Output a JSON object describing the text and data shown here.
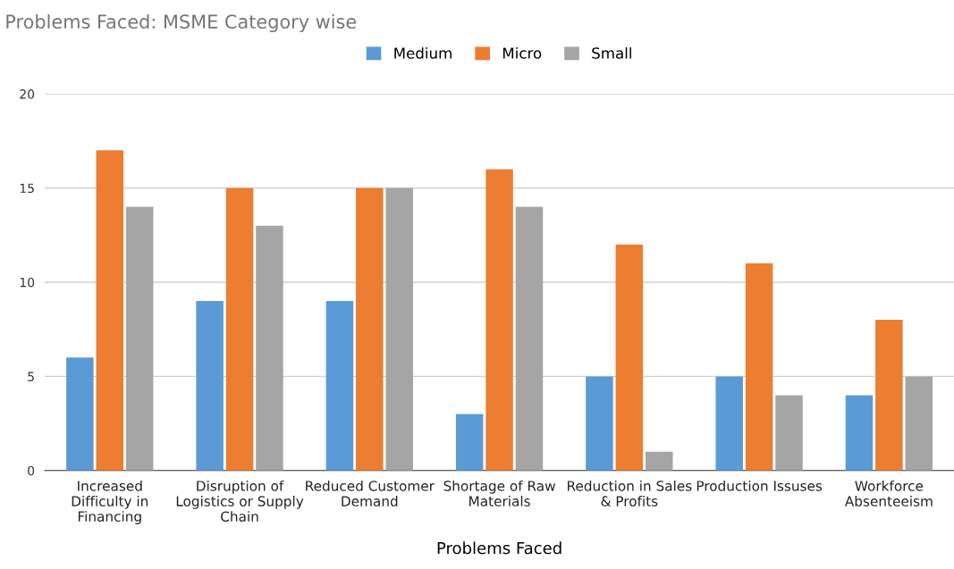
{
  "chart_data": {
    "type": "bar",
    "title": "Problems Faced: MSME Category wise",
    "xlabel": "Problems Faced",
    "categories": [
      "Increased\nDifficulty in\nFinancing",
      "Disruption of\nLogistics or Supply\nChain",
      "Reduced Customer\nDemand",
      "Shortage of Raw\nMaterials",
      "Reduction in Sales\n& Profits",
      "Production Issuses",
      "Workforce\nAbsenteeism"
    ],
    "series": [
      {
        "name": "Medium",
        "color": "#5b9bd5",
        "values": [
          6,
          9,
          9,
          3,
          5,
          5,
          4
        ]
      },
      {
        "name": "Micro",
        "color": "#ed7d31",
        "values": [
          17,
          15,
          15,
          16,
          12,
          11,
          8
        ]
      },
      {
        "name": "Small",
        "color": "#a5a5a5",
        "values": [
          14,
          13,
          15,
          14,
          1,
          4,
          5
        ]
      }
    ],
    "ylim": [
      0,
      20
    ],
    "yticks": [
      0,
      5,
      10,
      15,
      20
    ],
    "grid": "y",
    "legend": "top"
  }
}
